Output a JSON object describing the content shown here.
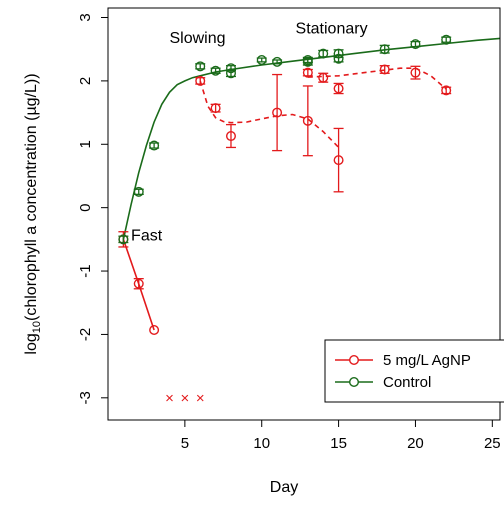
{
  "chart_data": {
    "type": "scatter",
    "xlabel": "Day",
    "ylabel_prefix": "log",
    "ylabel_sub": "10",
    "ylabel_suffix": "(chlorophyll a concentration (µg/L))",
    "xlim": [
      0,
      25.5
    ],
    "ylim": [
      -3.35,
      3.15
    ],
    "xticks": [
      5,
      10,
      15,
      20,
      25
    ],
    "yticks": [
      -3,
      -2,
      -1,
      0,
      1,
      2,
      3
    ],
    "grid": false,
    "legend_position": "bottom-right",
    "annotations": [
      {
        "text": "Fast",
        "x": 1.5,
        "y": -0.52
      },
      {
        "text": "Slowing",
        "x": 4.0,
        "y": 2.6
      },
      {
        "text": "Stationary",
        "x": 12.2,
        "y": 2.75
      }
    ],
    "series": [
      {
        "name": "5 mg/L AgNP",
        "color": "#e31a1c",
        "marker": "circle-open",
        "points": [
          {
            "x": 1,
            "y": -0.5,
            "err": 0.12
          },
          {
            "x": 2,
            "y": -1.2,
            "err": 0.08
          },
          {
            "x": 3,
            "y": -1.93,
            "err": 0
          },
          {
            "x": 6,
            "y": 2.0,
            "err": 0.05
          },
          {
            "x": 7,
            "y": 1.57,
            "err": 0.06
          },
          {
            "x": 8,
            "y": 1.13,
            "err": 0.18
          },
          {
            "x": 11,
            "y": 1.5,
            "err": 0.6
          },
          {
            "x": 13,
            "y": 1.37,
            "err": 0.55
          },
          {
            "x": 13,
            "y": 2.13,
            "err": 0.05
          },
          {
            "x": 14,
            "y": 2.05,
            "err": 0.07
          },
          {
            "x": 15,
            "y": 0.75,
            "err": 0.5
          },
          {
            "x": 15,
            "y": 1.88,
            "err": 0.08
          },
          {
            "x": 18,
            "y": 2.18,
            "err": 0.06
          },
          {
            "x": 20,
            "y": 2.13,
            "err": 0.1
          },
          {
            "x": 22,
            "y": 1.85,
            "err": 0.05
          }
        ],
        "fit_solid": {
          "x": [
            1,
            2,
            3
          ],
          "y": [
            -0.5,
            -1.2,
            -1.93
          ]
        },
        "fit_dashed": {
          "x": [
            6,
            6.5,
            7,
            7.5,
            8,
            9,
            10,
            11,
            12,
            13,
            14,
            15
          ],
          "y": [
            2.0,
            1.6,
            1.42,
            1.36,
            1.34,
            1.35,
            1.4,
            1.45,
            1.47,
            1.4,
            1.2,
            0.95
          ]
        },
        "fit_dashed_2": {
          "x": [
            13,
            15,
            17,
            19,
            20,
            21,
            22
          ],
          "y": [
            2.06,
            2.08,
            2.14,
            2.2,
            2.2,
            2.08,
            1.87
          ]
        },
        "crosses": {
          "x": [
            4,
            5,
            6
          ],
          "y": [
            -3,
            -3,
            -3
          ]
        }
      },
      {
        "name": "Control",
        "color": "#1a6b1a",
        "marker": "circle-open",
        "points": [
          {
            "x": 1,
            "y": -0.5,
            "err": 0.05
          },
          {
            "x": 2,
            "y": 0.25,
            "err": 0.04
          },
          {
            "x": 3,
            "y": 0.98,
            "err": 0.04
          },
          {
            "x": 6,
            "y": 2.23,
            "err": 0.04
          },
          {
            "x": 7,
            "y": 2.16,
            "err": 0.04
          },
          {
            "x": 8,
            "y": 2.12,
            "err": 0.05
          },
          {
            "x": 8,
            "y": 2.2,
            "err": 0.04
          },
          {
            "x": 10,
            "y": 2.33,
            "err": 0.03
          },
          {
            "x": 11,
            "y": 2.3,
            "err": 0.03
          },
          {
            "x": 13,
            "y": 2.3,
            "err": 0.05
          },
          {
            "x": 13,
            "y": 2.33,
            "err": 0.04
          },
          {
            "x": 14,
            "y": 2.43,
            "err": 0.05
          },
          {
            "x": 15,
            "y": 2.35,
            "err": 0.05
          },
          {
            "x": 15,
            "y": 2.43,
            "err": 0.06
          },
          {
            "x": 18,
            "y": 2.5,
            "err": 0.06
          },
          {
            "x": 20,
            "y": 2.58,
            "err": 0.04
          },
          {
            "x": 22,
            "y": 2.65,
            "err": 0.04
          }
        ],
        "fit_solid": {
          "x": [
            1,
            1.5,
            2,
            2.5,
            3,
            3.5,
            4,
            4.5,
            5,
            5.5,
            6,
            7,
            8,
            10,
            12,
            14,
            16,
            18,
            20,
            22,
            24,
            25.5
          ],
          "y": [
            -0.5,
            0.05,
            0.55,
            0.98,
            1.35,
            1.63,
            1.82,
            1.94,
            2.0,
            2.05,
            2.08,
            2.14,
            2.18,
            2.25,
            2.31,
            2.37,
            2.43,
            2.49,
            2.54,
            2.59,
            2.64,
            2.67
          ]
        }
      }
    ]
  }
}
